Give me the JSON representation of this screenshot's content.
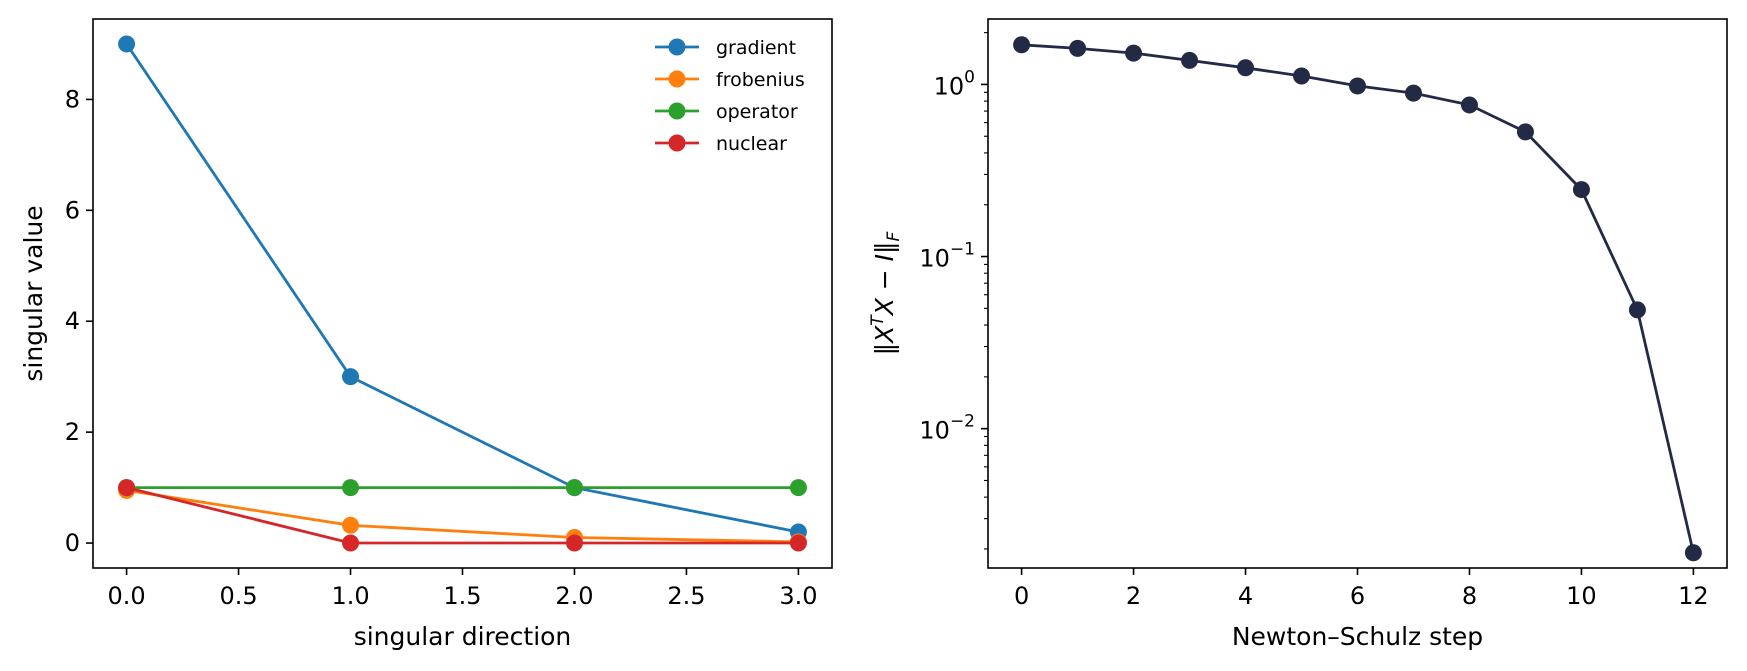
{
  "chart_data": [
    {
      "type": "line",
      "xlabel": "singular direction",
      "ylabel": "singular value",
      "x": [
        0,
        1,
        2,
        3
      ],
      "xlim": [
        -0.15,
        3.15
      ],
      "ylim": [
        -0.45,
        9.45
      ],
      "xticks": [
        0.0,
        0.5,
        1.0,
        1.5,
        2.0,
        2.5,
        3.0
      ],
      "xtick_labels": [
        "0.0",
        "0.5",
        "1.0",
        "1.5",
        "2.0",
        "2.5",
        "3.0"
      ],
      "yticks": [
        0,
        2,
        4,
        6,
        8
      ],
      "ytick_labels": [
        "0",
        "2",
        "4",
        "6",
        "8"
      ],
      "grid": false,
      "legend": "top-right",
      "series": [
        {
          "name": "gradient",
          "color": "#1f77b4",
          "values": [
            9.0,
            3.0,
            1.0,
            0.2
          ]
        },
        {
          "name": "frobenius",
          "color": "#ff7f0e",
          "values": [
            0.95,
            0.32,
            0.1,
            0.02
          ]
        },
        {
          "name": "operator",
          "color": "#2ca02c",
          "values": [
            1.0,
            1.0,
            1.0,
            1.0
          ]
        },
        {
          "name": "nuclear",
          "color": "#d62728",
          "values": [
            1.0,
            0.0,
            0.0,
            0.0
          ]
        }
      ]
    },
    {
      "type": "line",
      "xlabel": "Newton–Schulz step",
      "ylabel_parts": {
        "lhs": "‖X",
        "sup": "T",
        "mid": "X − I‖",
        "sub": "F"
      },
      "yscale": "log",
      "x": [
        0,
        1,
        2,
        3,
        4,
        5,
        6,
        7,
        8,
        9,
        10,
        11,
        12
      ],
      "xlim": [
        -0.6,
        12.6
      ],
      "ylim": [
        0.00155,
        2.4
      ],
      "xticks": [
        0,
        2,
        4,
        6,
        8,
        10,
        12
      ],
      "xtick_labels": [
        "0",
        "2",
        "4",
        "6",
        "8",
        "10",
        "12"
      ],
      "yticks": [
        0.01,
        0.1,
        1
      ],
      "ytick_labels": [
        {
          "base": "10",
          "exp": "−2"
        },
        {
          "base": "10",
          "exp": "−1"
        },
        {
          "base": "10",
          "exp": "0"
        }
      ],
      "grid": false,
      "series": [
        {
          "color": "#222a45",
          "values": [
            1.7,
            1.62,
            1.52,
            1.38,
            1.25,
            1.12,
            0.98,
            0.89,
            0.76,
            0.53,
            0.245,
            0.049,
            0.0019
          ]
        }
      ]
    }
  ]
}
